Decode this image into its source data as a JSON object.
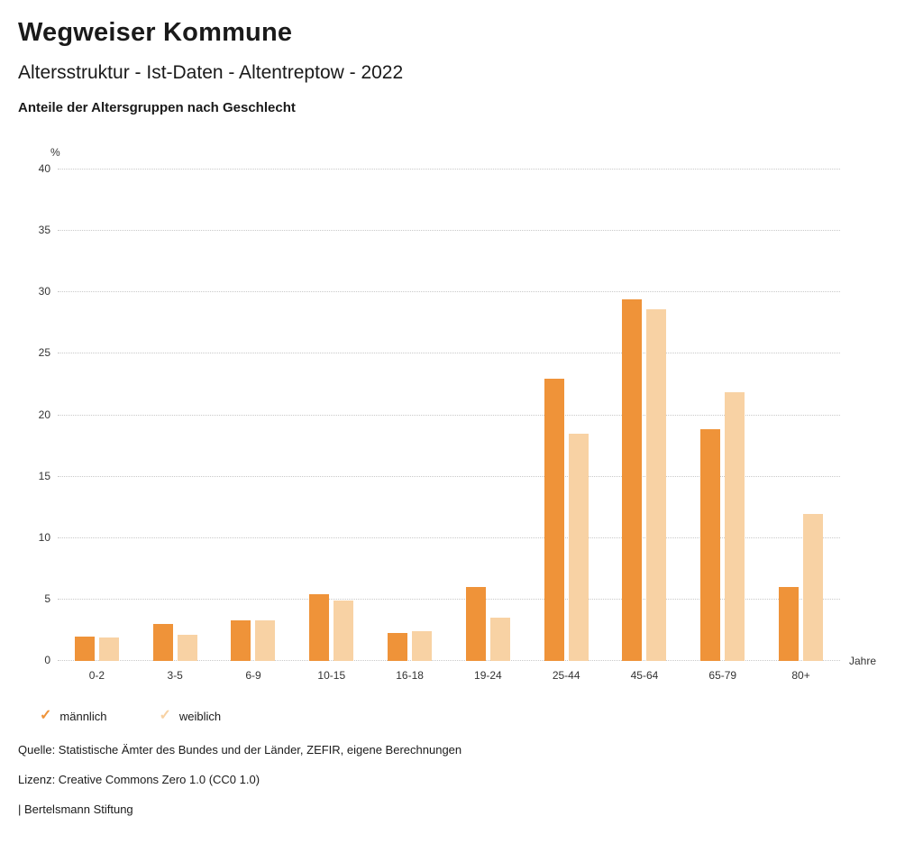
{
  "header": {
    "title": "Wegweiser Kommune",
    "subtitle": "Altersstruktur - Ist-Daten - Altentreptow - 2022",
    "chart_title": "Anteile der Altersgruppen nach Geschlecht"
  },
  "chart_data": {
    "type": "bar",
    "categories": [
      "0-2",
      "3-5",
      "6-9",
      "10-15",
      "16-18",
      "19-24",
      "25-44",
      "45-64",
      "65-79",
      "80+"
    ],
    "series": [
      {
        "name": "männlich",
        "color": "#ef9339",
        "values": [
          2.0,
          3.0,
          3.3,
          5.4,
          2.3,
          6.0,
          23.0,
          29.4,
          18.9,
          6.0
        ]
      },
      {
        "name": "weiblich",
        "color": "#f8d2a4",
        "values": [
          1.9,
          2.1,
          3.3,
          4.9,
          2.4,
          3.5,
          18.5,
          28.6,
          21.9,
          12.0
        ]
      }
    ],
    "ylabel": "%",
    "xlabel": "Jahre",
    "ylim": [
      0,
      40
    ],
    "ytick_step": 5,
    "grid": true,
    "gridline_color": "#c9c9c9",
    "legend_position": "bottom-left",
    "legend_marker": "✓"
  },
  "footer": {
    "source": "Quelle: Statistische Ämter des Bundes und der Länder, ZEFIR, eigene Berechnungen",
    "license": "Lizenz: Creative Commons Zero 1.0 (CC0 1.0)",
    "attribution": "| Bertelsmann Stiftung"
  }
}
